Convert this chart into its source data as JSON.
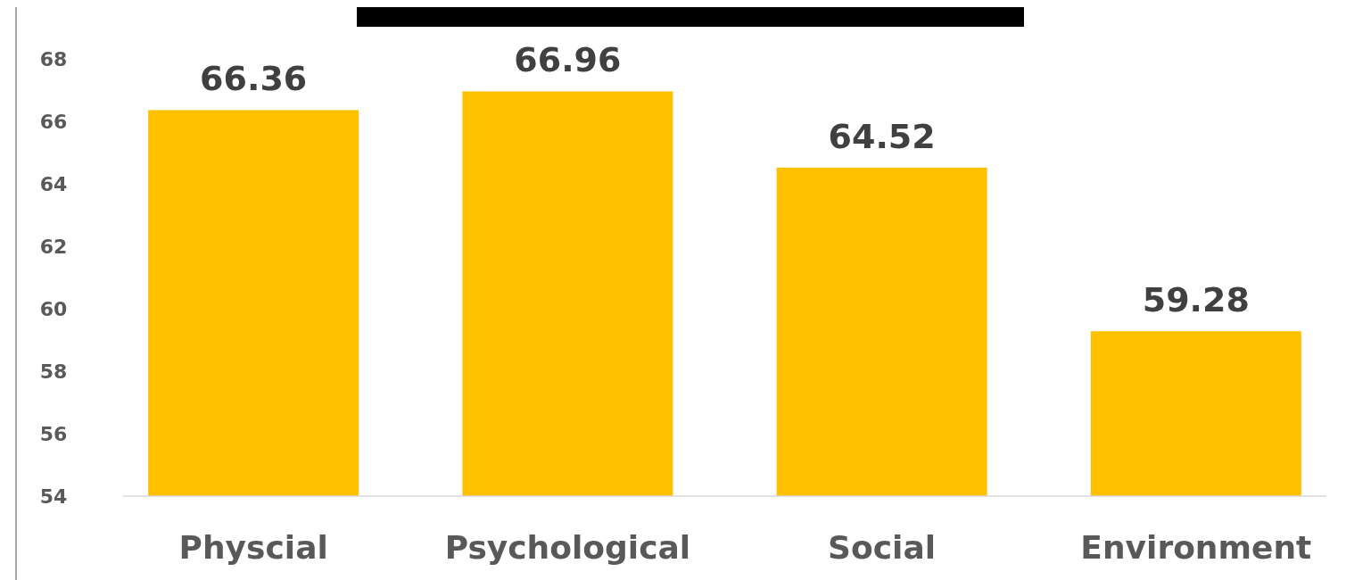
{
  "chart_data": {
    "type": "bar",
    "categories": [
      "Physcial",
      "Psychological",
      "Social",
      "Environment"
    ],
    "values": [
      66.36,
      66.96,
      64.52,
      59.28
    ],
    "color": "#ffc000",
    "ylim": [
      54,
      68
    ],
    "yticks": [
      54,
      56,
      58,
      60,
      62,
      64,
      66,
      68
    ],
    "data_labels": true
  }
}
